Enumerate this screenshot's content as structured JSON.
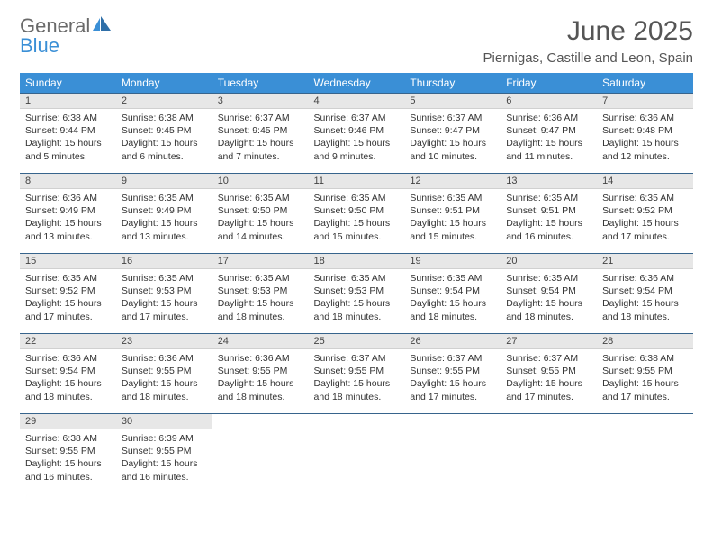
{
  "logo": {
    "text1": "General",
    "text2": "Blue"
  },
  "title": "June 2025",
  "location": "Piernigas, Castille and Leon, Spain",
  "colors": {
    "header_bg": "#3a8fd6",
    "header_text": "#ffffff",
    "daynum_bg": "#e7e7e7",
    "row_border": "#37648c",
    "body_text": "#333333",
    "title_text": "#555555",
    "logo_gray": "#6a6a6a",
    "logo_blue": "#3a8fd6",
    "page_bg": "#ffffff"
  },
  "weekdays": [
    "Sunday",
    "Monday",
    "Tuesday",
    "Wednesday",
    "Thursday",
    "Friday",
    "Saturday"
  ],
  "weeks": [
    [
      {
        "n": "1",
        "sunrise": "Sunrise: 6:38 AM",
        "sunset": "Sunset: 9:44 PM",
        "day": "Daylight: 15 hours and 5 minutes."
      },
      {
        "n": "2",
        "sunrise": "Sunrise: 6:38 AM",
        "sunset": "Sunset: 9:45 PM",
        "day": "Daylight: 15 hours and 6 minutes."
      },
      {
        "n": "3",
        "sunrise": "Sunrise: 6:37 AM",
        "sunset": "Sunset: 9:45 PM",
        "day": "Daylight: 15 hours and 7 minutes."
      },
      {
        "n": "4",
        "sunrise": "Sunrise: 6:37 AM",
        "sunset": "Sunset: 9:46 PM",
        "day": "Daylight: 15 hours and 9 minutes."
      },
      {
        "n": "5",
        "sunrise": "Sunrise: 6:37 AM",
        "sunset": "Sunset: 9:47 PM",
        "day": "Daylight: 15 hours and 10 minutes."
      },
      {
        "n": "6",
        "sunrise": "Sunrise: 6:36 AM",
        "sunset": "Sunset: 9:47 PM",
        "day": "Daylight: 15 hours and 11 minutes."
      },
      {
        "n": "7",
        "sunrise": "Sunrise: 6:36 AM",
        "sunset": "Sunset: 9:48 PM",
        "day": "Daylight: 15 hours and 12 minutes."
      }
    ],
    [
      {
        "n": "8",
        "sunrise": "Sunrise: 6:36 AM",
        "sunset": "Sunset: 9:49 PM",
        "day": "Daylight: 15 hours and 13 minutes."
      },
      {
        "n": "9",
        "sunrise": "Sunrise: 6:35 AM",
        "sunset": "Sunset: 9:49 PM",
        "day": "Daylight: 15 hours and 13 minutes."
      },
      {
        "n": "10",
        "sunrise": "Sunrise: 6:35 AM",
        "sunset": "Sunset: 9:50 PM",
        "day": "Daylight: 15 hours and 14 minutes."
      },
      {
        "n": "11",
        "sunrise": "Sunrise: 6:35 AM",
        "sunset": "Sunset: 9:50 PM",
        "day": "Daylight: 15 hours and 15 minutes."
      },
      {
        "n": "12",
        "sunrise": "Sunrise: 6:35 AM",
        "sunset": "Sunset: 9:51 PM",
        "day": "Daylight: 15 hours and 15 minutes."
      },
      {
        "n": "13",
        "sunrise": "Sunrise: 6:35 AM",
        "sunset": "Sunset: 9:51 PM",
        "day": "Daylight: 15 hours and 16 minutes."
      },
      {
        "n": "14",
        "sunrise": "Sunrise: 6:35 AM",
        "sunset": "Sunset: 9:52 PM",
        "day": "Daylight: 15 hours and 17 minutes."
      }
    ],
    [
      {
        "n": "15",
        "sunrise": "Sunrise: 6:35 AM",
        "sunset": "Sunset: 9:52 PM",
        "day": "Daylight: 15 hours and 17 minutes."
      },
      {
        "n": "16",
        "sunrise": "Sunrise: 6:35 AM",
        "sunset": "Sunset: 9:53 PM",
        "day": "Daylight: 15 hours and 17 minutes."
      },
      {
        "n": "17",
        "sunrise": "Sunrise: 6:35 AM",
        "sunset": "Sunset: 9:53 PM",
        "day": "Daylight: 15 hours and 18 minutes."
      },
      {
        "n": "18",
        "sunrise": "Sunrise: 6:35 AM",
        "sunset": "Sunset: 9:53 PM",
        "day": "Daylight: 15 hours and 18 minutes."
      },
      {
        "n": "19",
        "sunrise": "Sunrise: 6:35 AM",
        "sunset": "Sunset: 9:54 PM",
        "day": "Daylight: 15 hours and 18 minutes."
      },
      {
        "n": "20",
        "sunrise": "Sunrise: 6:35 AM",
        "sunset": "Sunset: 9:54 PM",
        "day": "Daylight: 15 hours and 18 minutes."
      },
      {
        "n": "21",
        "sunrise": "Sunrise: 6:36 AM",
        "sunset": "Sunset: 9:54 PM",
        "day": "Daylight: 15 hours and 18 minutes."
      }
    ],
    [
      {
        "n": "22",
        "sunrise": "Sunrise: 6:36 AM",
        "sunset": "Sunset: 9:54 PM",
        "day": "Daylight: 15 hours and 18 minutes."
      },
      {
        "n": "23",
        "sunrise": "Sunrise: 6:36 AM",
        "sunset": "Sunset: 9:55 PM",
        "day": "Daylight: 15 hours and 18 minutes."
      },
      {
        "n": "24",
        "sunrise": "Sunrise: 6:36 AM",
        "sunset": "Sunset: 9:55 PM",
        "day": "Daylight: 15 hours and 18 minutes."
      },
      {
        "n": "25",
        "sunrise": "Sunrise: 6:37 AM",
        "sunset": "Sunset: 9:55 PM",
        "day": "Daylight: 15 hours and 18 minutes."
      },
      {
        "n": "26",
        "sunrise": "Sunrise: 6:37 AM",
        "sunset": "Sunset: 9:55 PM",
        "day": "Daylight: 15 hours and 17 minutes."
      },
      {
        "n": "27",
        "sunrise": "Sunrise: 6:37 AM",
        "sunset": "Sunset: 9:55 PM",
        "day": "Daylight: 15 hours and 17 minutes."
      },
      {
        "n": "28",
        "sunrise": "Sunrise: 6:38 AM",
        "sunset": "Sunset: 9:55 PM",
        "day": "Daylight: 15 hours and 17 minutes."
      }
    ],
    [
      {
        "n": "29",
        "sunrise": "Sunrise: 6:38 AM",
        "sunset": "Sunset: 9:55 PM",
        "day": "Daylight: 15 hours and 16 minutes."
      },
      {
        "n": "30",
        "sunrise": "Sunrise: 6:39 AM",
        "sunset": "Sunset: 9:55 PM",
        "day": "Daylight: 15 hours and 16 minutes."
      },
      null,
      null,
      null,
      null,
      null
    ]
  ]
}
